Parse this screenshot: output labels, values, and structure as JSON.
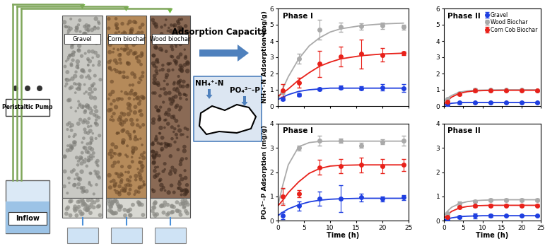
{
  "diagram": {
    "pump_label": "Peristaltic Pump",
    "inflow_label": "Inflow",
    "columns": [
      "Gravel",
      "Corn biochar",
      "Wood biochar"
    ],
    "arrow_label": "Adsorption Capacity",
    "ions": [
      "NH₄⁺-N",
      "PO₄³⁻-P"
    ]
  },
  "chart_data": [
    {
      "type": "line",
      "title": "Phase I",
      "y_label": "NH₄⁺-N Adsorption (mg/g)",
      "tick_labels": "y",
      "xlim": [
        0,
        25
      ],
      "xticks": [
        0,
        5,
        10,
        15,
        20,
        25
      ],
      "ylim": [
        0,
        6
      ],
      "yticks": [
        0,
        1,
        2,
        3,
        4,
        5,
        6
      ],
      "series": [
        {
          "color": "#1f3fe0",
          "marker": "circle",
          "x": [
            1,
            4,
            8,
            12,
            16,
            20,
            24
          ],
          "values": [
            0.45,
            0.7,
            1.05,
            1.15,
            1.1,
            1.15,
            1.1
          ],
          "errors": [
            0.1,
            0.1,
            0.1,
            0.1,
            0.1,
            0.2,
            0.25
          ],
          "fit_x": [
            0,
            1,
            2,
            4,
            6,
            8,
            10,
            12,
            16,
            20,
            24
          ],
          "fit": [
            0.4,
            0.55,
            0.7,
            0.9,
            1.0,
            1.05,
            1.1,
            1.1,
            1.1,
            1.1,
            1.1
          ]
        },
        {
          "color": "#aaaaaa",
          "marker": "circle",
          "x": [
            1,
            4,
            8,
            12,
            16,
            20,
            24
          ],
          "values": [
            0.85,
            2.9,
            4.7,
            4.85,
            4.9,
            4.95,
            4.85
          ],
          "errors": [
            0.1,
            0.3,
            0.6,
            0.3,
            0.2,
            0.2,
            0.15
          ],
          "fit_x": [
            0,
            1,
            2,
            4,
            6,
            8,
            10,
            12,
            16,
            20,
            24
          ],
          "fit": [
            0.4,
            1.1,
            1.8,
            2.9,
            3.7,
            4.2,
            4.55,
            4.75,
            4.95,
            5.05,
            5.1
          ]
        },
        {
          "color": "#e8211a",
          "marker": "circle",
          "x": [
            1,
            4,
            8,
            12,
            16,
            20,
            24
          ],
          "values": [
            0.95,
            1.45,
            2.6,
            3.05,
            3.2,
            3.15,
            3.25
          ],
          "errors": [
            0.4,
            0.3,
            0.8,
            0.6,
            0.9,
            0.4,
            0.1
          ],
          "fit_x": [
            0,
            1,
            2,
            4,
            6,
            8,
            10,
            12,
            16,
            20,
            24
          ],
          "fit": [
            0.6,
            0.8,
            1.05,
            1.6,
            2.05,
            2.45,
            2.7,
            2.9,
            3.1,
            3.2,
            3.25
          ]
        }
      ]
    },
    {
      "type": "line",
      "title": "Phase II",
      "tick_labels": "y",
      "legend": "upper right",
      "xlim": [
        0,
        25
      ],
      "xticks": [
        0,
        5,
        10,
        15,
        20,
        25
      ],
      "ylim": [
        0,
        6
      ],
      "yticks": [
        0,
        1,
        2,
        3,
        4,
        5,
        6
      ],
      "series": [
        {
          "name": "Gravel",
          "color": "#1f3fe0",
          "marker": "circle",
          "x": [
            1,
            4,
            8,
            12,
            16,
            20,
            24
          ],
          "values": [
            0.1,
            0.2,
            0.22,
            0.22,
            0.22,
            0.22,
            0.22
          ],
          "errors": [
            0.03,
            0.05,
            0.05,
            0.05,
            0.05,
            0.05,
            0.05
          ],
          "fit_x": [
            0,
            1,
            2,
            4,
            6,
            8,
            10,
            12,
            16,
            20,
            24
          ],
          "fit": [
            0.05,
            0.12,
            0.17,
            0.21,
            0.22,
            0.22,
            0.22,
            0.22,
            0.22,
            0.22,
            0.22
          ]
        },
        {
          "name": "Wood Biochar",
          "color": "#aaaaaa",
          "marker": "circle",
          "x": [
            1,
            4,
            8,
            12,
            16,
            20,
            24
          ],
          "values": [
            0.45,
            0.8,
            1.0,
            1.0,
            1.0,
            1.0,
            0.95
          ],
          "errors": [
            0.05,
            0.08,
            0.08,
            0.05,
            0.05,
            0.05,
            0.05
          ],
          "fit_x": [
            0,
            1,
            2,
            4,
            6,
            8,
            10,
            12,
            16,
            20,
            24
          ],
          "fit": [
            0.3,
            0.5,
            0.65,
            0.85,
            0.93,
            0.97,
            0.98,
            0.99,
            1.0,
            1.0,
            1.0
          ]
        },
        {
          "name": "Corn Cob Biochar",
          "color": "#e8211a",
          "marker": "circle",
          "x": [
            1,
            4,
            8,
            12,
            16,
            20,
            24
          ],
          "values": [
            0.25,
            0.75,
            0.95,
            0.95,
            0.95,
            0.95,
            0.95
          ],
          "errors": [
            0.05,
            0.08,
            0.08,
            0.05,
            0.05,
            0.05,
            0.05
          ],
          "fit_x": [
            0,
            1,
            2,
            4,
            6,
            8,
            10,
            12,
            16,
            20,
            24
          ],
          "fit": [
            0.1,
            0.35,
            0.55,
            0.78,
            0.88,
            0.93,
            0.95,
            0.96,
            0.97,
            0.97,
            0.97
          ]
        }
      ]
    },
    {
      "type": "line",
      "title": "Phase I",
      "x_label": "Time (h)",
      "y_label": "PO₄³⁻-P Adsorption (mg/g)",
      "xlim": [
        0,
        25
      ],
      "xticks": [
        0,
        5,
        10,
        15,
        20,
        25
      ],
      "ylim": [
        0,
        4
      ],
      "yticks": [
        0,
        1,
        2,
        3,
        4
      ],
      "series": [
        {
          "color": "#1f3fe0",
          "marker": "circle",
          "x": [
            1,
            4,
            8,
            12,
            16,
            20,
            24
          ],
          "values": [
            0.2,
            0.6,
            0.9,
            0.9,
            0.95,
            0.9,
            0.95
          ],
          "errors": [
            0.15,
            0.2,
            0.3,
            0.55,
            0.15,
            0.1,
            0.1
          ],
          "fit_x": [
            0,
            1,
            2,
            4,
            6,
            8,
            10,
            12,
            16,
            20,
            24
          ],
          "fit": [
            0.2,
            0.35,
            0.48,
            0.65,
            0.77,
            0.84,
            0.88,
            0.9,
            0.92,
            0.92,
            0.92
          ]
        },
        {
          "color": "#aaaaaa",
          "marker": "circle",
          "x": [
            1,
            4,
            8,
            12,
            16,
            20,
            24
          ],
          "values": [
            1.0,
            3.0,
            3.3,
            3.3,
            3.1,
            3.25,
            3.3
          ],
          "errors": [
            0.3,
            0.1,
            0.2,
            0.1,
            0.1,
            0.1,
            0.2
          ],
          "fit_x": [
            0,
            1,
            2,
            4,
            6,
            8,
            10,
            12,
            16,
            20,
            24
          ],
          "fit": [
            0.6,
            1.5,
            2.3,
            3.05,
            3.22,
            3.27,
            3.28,
            3.28,
            3.28,
            3.28,
            3.28
          ]
        },
        {
          "color": "#e8211a",
          "marker": "circle",
          "x": [
            1,
            4,
            8,
            12,
            16,
            20,
            24
          ],
          "values": [
            1.0,
            1.1,
            2.2,
            2.25,
            2.3,
            2.25,
            2.3
          ],
          "errors": [
            0.35,
            0.15,
            0.3,
            0.3,
            0.3,
            0.3,
            0.25
          ],
          "fit_x": [
            0,
            1,
            2,
            4,
            6,
            8,
            10,
            12,
            16,
            20,
            24
          ],
          "fit": [
            0.6,
            0.85,
            1.15,
            1.6,
            1.95,
            2.15,
            2.25,
            2.28,
            2.3,
            2.3,
            2.3
          ]
        }
      ]
    },
    {
      "type": "line",
      "title": "Phase II",
      "x_label": "Time (h)",
      "xlim": [
        0,
        25
      ],
      "xticks": [
        0,
        5,
        10,
        15,
        20,
        25
      ],
      "ylim": [
        0,
        4
      ],
      "yticks": [
        0,
        1,
        2,
        3,
        4
      ],
      "series": [
        {
          "color": "#1f3fe0",
          "marker": "circle",
          "x": [
            1,
            4,
            8,
            12,
            16,
            20,
            24
          ],
          "values": [
            0.05,
            0.15,
            0.2,
            0.2,
            0.2,
            0.2,
            0.2
          ],
          "errors": [
            0.03,
            0.05,
            0.1,
            0.05,
            0.03,
            0.03,
            0.03
          ],
          "fit_x": [
            0,
            1,
            2,
            4,
            6,
            8,
            10,
            12,
            16,
            20,
            24
          ],
          "fit": [
            0.02,
            0.07,
            0.11,
            0.16,
            0.18,
            0.19,
            0.2,
            0.2,
            0.2,
            0.2,
            0.2
          ]
        },
        {
          "color": "#aaaaaa",
          "marker": "circle",
          "x": [
            1,
            4,
            8,
            12,
            16,
            20,
            24
          ],
          "values": [
            0.3,
            0.7,
            0.8,
            0.85,
            0.85,
            0.85,
            0.85
          ],
          "errors": [
            0.05,
            0.08,
            0.05,
            0.05,
            0.05,
            0.05,
            0.05
          ],
          "fit_x": [
            0,
            1,
            2,
            4,
            6,
            8,
            10,
            12,
            16,
            20,
            24
          ],
          "fit": [
            0.2,
            0.4,
            0.55,
            0.7,
            0.78,
            0.82,
            0.84,
            0.85,
            0.86,
            0.86,
            0.86
          ]
        },
        {
          "color": "#e8211a",
          "marker": "circle",
          "x": [
            1,
            4,
            8,
            12,
            16,
            20,
            24
          ],
          "values": [
            0.15,
            0.55,
            0.6,
            0.62,
            0.62,
            0.62,
            0.62
          ],
          "errors": [
            0.05,
            0.05,
            0.05,
            0.05,
            0.05,
            0.05,
            0.05
          ],
          "fit_x": [
            0,
            1,
            2,
            4,
            6,
            8,
            10,
            12,
            16,
            20,
            24
          ],
          "fit": [
            0.1,
            0.25,
            0.38,
            0.52,
            0.58,
            0.61,
            0.62,
            0.63,
            0.63,
            0.63,
            0.63
          ]
        }
      ]
    }
  ]
}
